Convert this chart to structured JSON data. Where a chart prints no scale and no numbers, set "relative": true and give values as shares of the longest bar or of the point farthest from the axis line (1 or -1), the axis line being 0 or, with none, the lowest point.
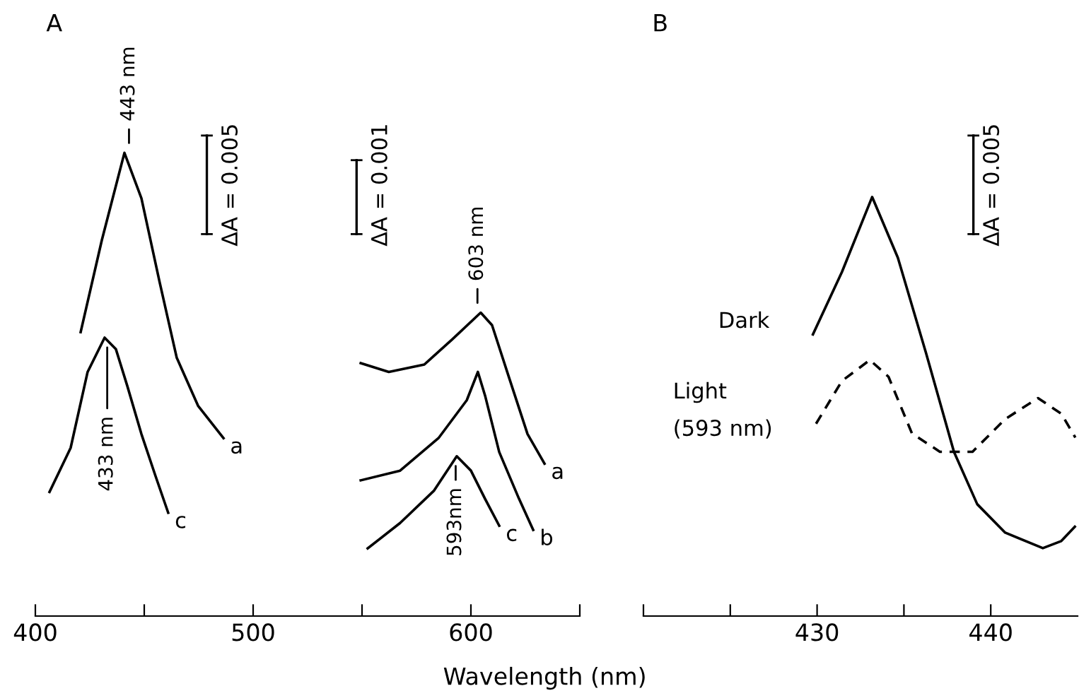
{
  "chart_data": [
    {
      "type": "line",
      "title": "A",
      "xlabel": "Wavelength (nm)",
      "relative": true,
      "line_style": "solid",
      "marker": "none",
      "grid": false,
      "legend": false,
      "tick_labels": "x",
      "xlim": [
        400,
        650
      ],
      "xticks": [
        400,
        {
          "value": 450,
          "label": null
        },
        500,
        {
          "value": 550,
          "label": null
        },
        600,
        {
          "value": 650,
          "label": null
        }
      ],
      "series": [
        {
          "name": "a",
          "color": "#000000",
          "x": [
            420.8,
            430.5,
            440.9,
            448.7,
            457.1,
            464.9,
            474.7,
            486.4
          ],
          "values": [
            0.613,
            0.811,
            1.0,
            0.902,
            0.72,
            0.558,
            0.454,
            0.384
          ]
        },
        {
          "name": "c",
          "color": "#000000",
          "x": [
            406.5,
            416.2,
            424.0,
            431.8,
            437.0,
            442.2,
            448.7,
            455.2,
            461.0
          ],
          "values": [
            0.268,
            0.363,
            0.527,
            0.601,
            0.576,
            0.497,
            0.393,
            0.302,
            0.223
          ]
        },
        {
          "name": "a",
          "color": "#000000",
          "x": [
            549.4,
            562.3,
            578.6,
            591.6,
            604.5,
            609.7,
            617.5,
            626.0,
            633.8
          ],
          "values": [
            0.546,
            0.527,
            0.543,
            0.598,
            0.655,
            0.628,
            0.515,
            0.393,
            0.329
          ]
        },
        {
          "name": "b",
          "color": "#000000",
          "x": [
            549.4,
            567.5,
            585.1,
            598.1,
            603.2,
            606.5,
            613.0,
            622.1,
            628.6
          ],
          "values": [
            0.293,
            0.314,
            0.384,
            0.466,
            0.527,
            0.476,
            0.354,
            0.253,
            0.186
          ]
        },
        {
          "name": "c",
          "color": "#000000",
          "x": [
            552.6,
            567.5,
            583.1,
            593.5,
            600.0,
            606.5,
            613.0
          ],
          "values": [
            0.146,
            0.201,
            0.271,
            0.345,
            0.314,
            0.253,
            0.195
          ]
        }
      ],
      "annotations": [
        {
          "text": "443 nm",
          "x": 443,
          "y": 1.0
        },
        {
          "text": "433 nm",
          "x": 433,
          "y": 0.601
        },
        {
          "text": "603 nm",
          "x": 603,
          "y": 0.655
        },
        {
          "text": "593nm",
          "x": 593,
          "y": 0.345
        },
        "ΔA = 0.005",
        "ΔA = 0.001"
      ]
    },
    {
      "type": "line",
      "title": "B",
      "relative": true,
      "marker": "none",
      "grid": false,
      "legend": false,
      "tick_labels": "x",
      "xlim": [
        420,
        445
      ],
      "xticks": [
        {
          "value": 420,
          "label": null
        },
        {
          "value": 425,
          "label": null
        },
        430,
        {
          "value": 435,
          "label": null
        },
        440
      ],
      "series": [
        {
          "name": "Dark",
          "color": "#000000",
          "line_style": "solid",
          "x": [
            429.76,
            431.43,
            433.17,
            434.65,
            436.27,
            437.88,
            439.22,
            440.83,
            443.0,
            444.06,
            444.84
          ],
          "values": [
            0.672,
            0.821,
            1.0,
            0.855,
            0.628,
            0.392,
            0.267,
            0.199,
            0.162,
            0.179,
            0.213
          ]
        },
        {
          "name": "Light\n(593 nm)",
          "color": "#000000",
          "line_style": "dashed",
          "x": [
            429.94,
            431.43,
            433.04,
            434.11,
            435.46,
            437.07,
            438.95,
            440.83,
            442.72,
            444.06,
            444.87
          ],
          "values": [
            0.459,
            0.561,
            0.611,
            0.571,
            0.436,
            0.392,
            0.392,
            0.47,
            0.52,
            0.483,
            0.426
          ]
        }
      ],
      "annotations": [
        "ΔA = 0.005"
      ]
    }
  ]
}
